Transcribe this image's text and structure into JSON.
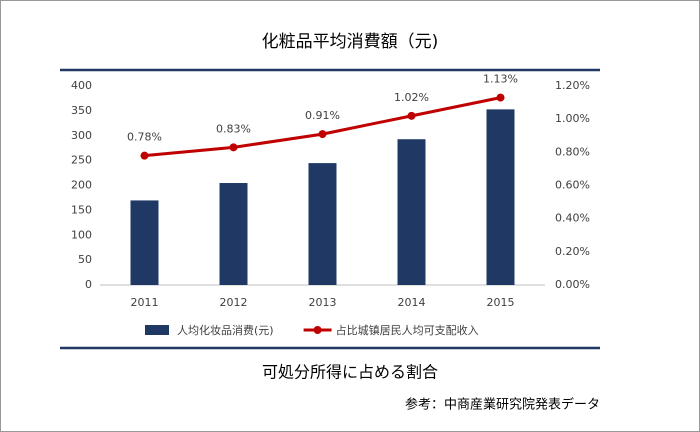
{
  "chart_data": {
    "type": "bar_line",
    "title": "化粧品平均消費額（元)",
    "categories": [
      "2011",
      "2012",
      "2013",
      "2014",
      "2015"
    ],
    "series": [
      {
        "name": "人均化妆品消费(元)",
        "type": "bar",
        "color": "#1f3864",
        "values": [
          170,
          205,
          245,
          293,
          353
        ]
      },
      {
        "name": "占比城镇居民人均可支配收入",
        "type": "line",
        "axis": "y2",
        "color": "#c00000",
        "values": [
          0.78,
          0.83,
          0.91,
          1.02,
          1.13
        ],
        "value_labels": [
          "0.78%",
          "0.83%",
          "0.91%",
          "1.02%",
          "1.13%"
        ]
      }
    ],
    "ylim": [
      0,
      400
    ],
    "yticks": [
      0,
      50,
      100,
      150,
      200,
      250,
      300,
      350,
      400
    ],
    "y2lim": [
      0,
      1.2
    ],
    "y2ticks": [
      {
        "value": 0,
        "label": "0.00%"
      },
      {
        "value": 0.2,
        "label": "0.20%"
      },
      {
        "value": 0.4,
        "label": "0.40%"
      },
      {
        "value": 0.6,
        "label": "0.60%"
      },
      {
        "value": 0.8,
        "label": "0.80%"
      },
      {
        "value": 1.0,
        "label": "1.00%"
      },
      {
        "value": 1.2,
        "label": "1.20%"
      }
    ],
    "grid": false,
    "legend": "bottom"
  },
  "caption": "可処分所得に占める割合",
  "source": "参考：中商産業研究院発表データ"
}
